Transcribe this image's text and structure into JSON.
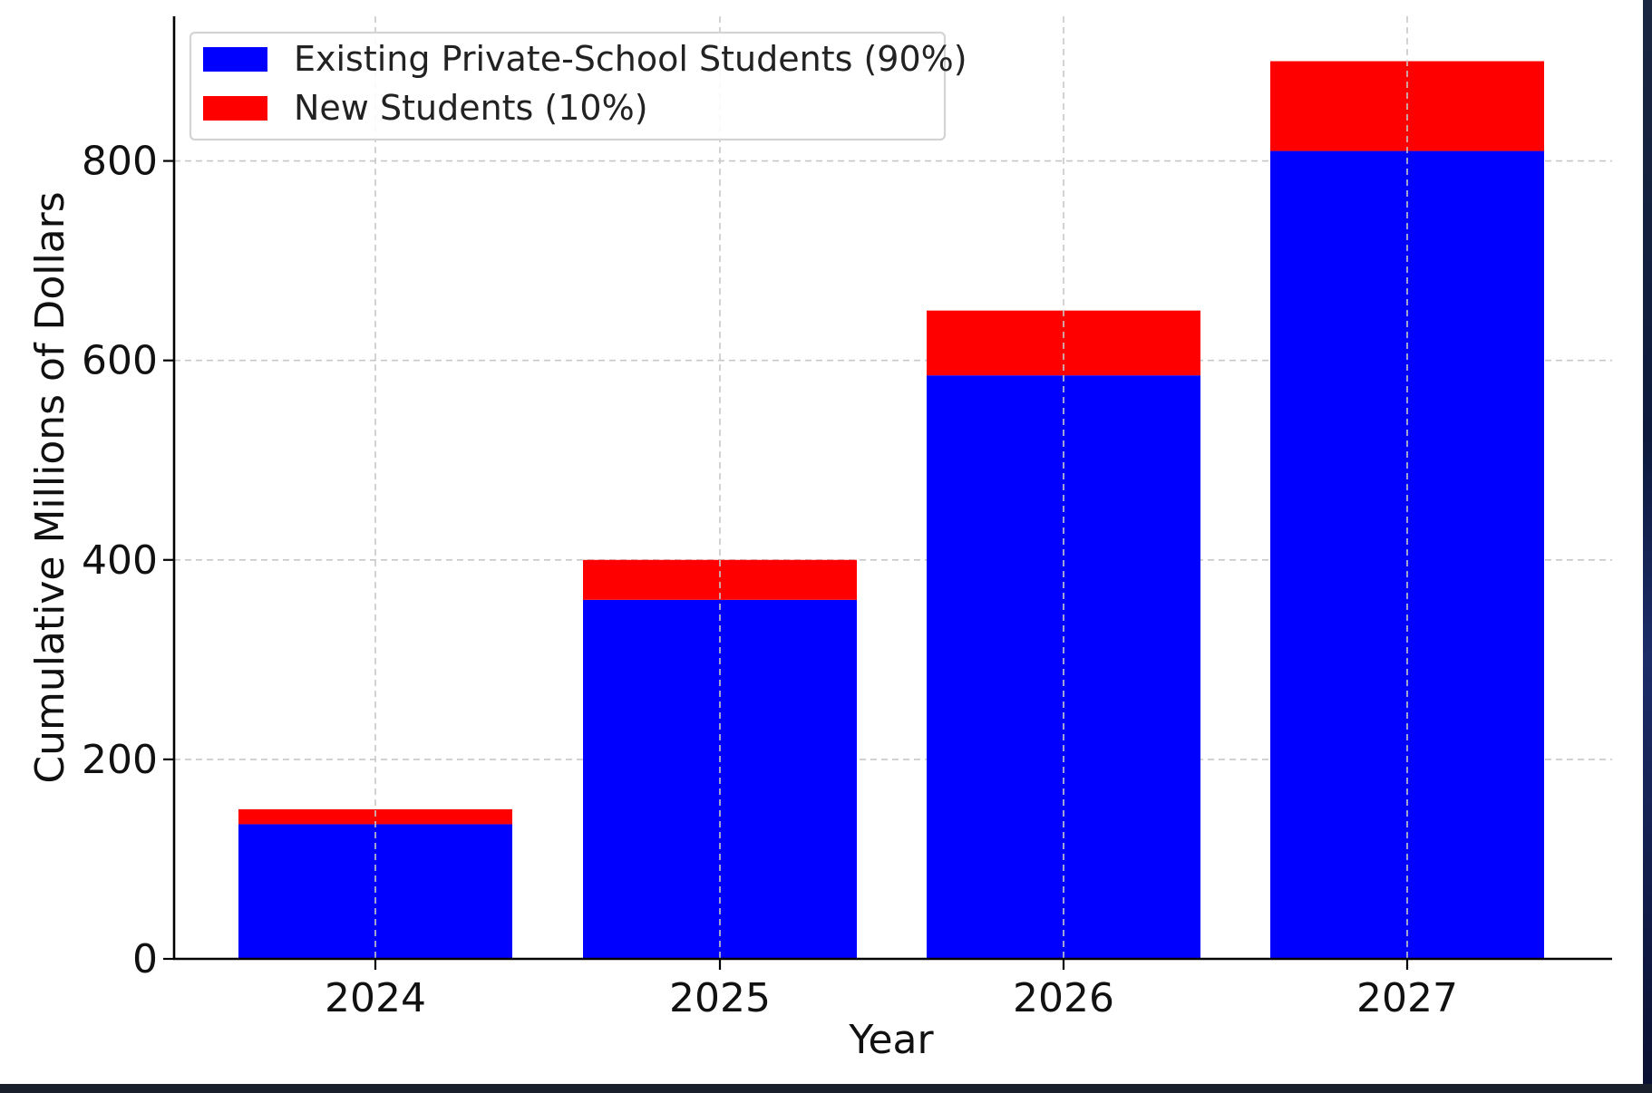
{
  "chart_data": {
    "type": "bar",
    "stacked": true,
    "title": "",
    "xlabel": "Year",
    "ylabel": "Cumulative Millions of Dollars",
    "categories": [
      "2024",
      "2025",
      "2026",
      "2027"
    ],
    "series": [
      {
        "name": "Existing Private-School Students (90%)",
        "values": [
          135,
          360,
          585,
          810
        ],
        "color": "#0000ff"
      },
      {
        "name": "New Students (10%)",
        "values": [
          15,
          40,
          65,
          90
        ],
        "color": "#ff0000"
      }
    ],
    "totals": [
      150,
      400,
      650,
      900
    ],
    "ylim": [
      0,
      945
    ],
    "yticks": [
      "0",
      "200",
      "400",
      "600",
      "800"
    ],
    "grid": true,
    "legend_position": "top-left"
  }
}
